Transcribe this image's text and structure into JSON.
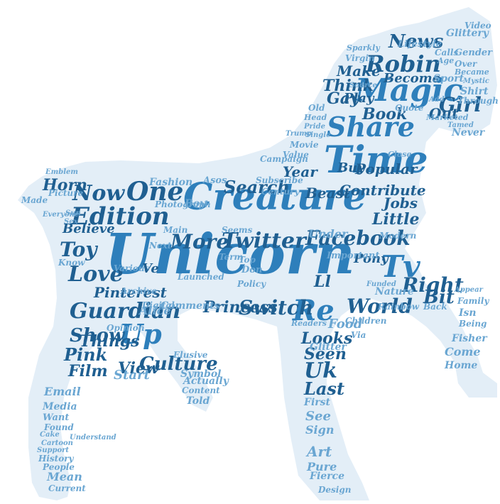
{
  "palette": {
    "bg_shape": "#e3eef7",
    "primary": "#2e7fbb",
    "dark": "#1f5f91",
    "light": "#6aa6d2",
    "pale": "#a9c9e4"
  },
  "words": [
    {
      "t": "Unicorn",
      "c": "primary"
    },
    {
      "t": "Creature",
      "c": "primary"
    },
    {
      "t": "Time",
      "c": "primary"
    },
    {
      "t": "Magic",
      "c": "primary"
    },
    {
      "t": "Share",
      "c": "primary"
    },
    {
      "t": "Robin",
      "c": "dark"
    },
    {
      "t": "News",
      "c": "dark"
    },
    {
      "t": "Edition",
      "c": "dark"
    },
    {
      "t": "Twitter",
      "c": "dark"
    },
    {
      "t": "Facebook",
      "c": "dark"
    },
    {
      "t": "Guardian",
      "c": "dark"
    },
    {
      "t": "Up",
      "c": "primary"
    },
    {
      "t": "Re",
      "c": "primary"
    },
    {
      "t": "One",
      "c": "dark"
    },
    {
      "t": "Now",
      "c": "dark"
    },
    {
      "t": "Love",
      "c": "dark"
    },
    {
      "t": "Toy",
      "c": "dark"
    },
    {
      "t": "Show",
      "c": "dark"
    },
    {
      "t": "Pink",
      "c": "dark"
    },
    {
      "t": "Film",
      "c": "dark"
    },
    {
      "t": "Culture",
      "c": "dark"
    },
    {
      "t": "Search",
      "c": "dark"
    },
    {
      "t": "More",
      "c": "dark"
    },
    {
      "t": "Switch",
      "c": "dark"
    },
    {
      "t": "World",
      "c": "dark"
    },
    {
      "t": "Right",
      "c": "dark"
    },
    {
      "t": "Girl",
      "c": "dark"
    },
    {
      "t": "Book",
      "c": "dark"
    },
    {
      "t": "Popular",
      "c": "dark"
    },
    {
      "t": "Tv",
      "c": "primary"
    },
    {
      "t": "Uk",
      "c": "dark"
    },
    {
      "t": "Seen",
      "c": "dark"
    },
    {
      "t": "Last",
      "c": "dark"
    },
    {
      "t": "Looks",
      "c": "dark"
    },
    {
      "t": "Princess",
      "c": "dark"
    },
    {
      "t": "View",
      "c": "dark"
    },
    {
      "t": "Things",
      "c": "dark"
    },
    {
      "t": "Gay",
      "c": "dark"
    },
    {
      "t": "Think",
      "c": "dark"
    },
    {
      "t": "Play",
      "c": "dark"
    },
    {
      "t": "Make",
      "c": "dark"
    },
    {
      "t": "Become",
      "c": "dark"
    },
    {
      "t": "Little",
      "c": "dark"
    },
    {
      "t": "Jobs",
      "c": "dark"
    },
    {
      "t": "Contribute",
      "c": "dark"
    },
    {
      "t": "Beast",
      "c": "dark"
    },
    {
      "t": "Year",
      "c": "dark"
    },
    {
      "t": "Buy",
      "c": "dark"
    },
    {
      "t": "Horn",
      "c": "dark"
    },
    {
      "t": "Pinterest",
      "c": "dark"
    },
    {
      "t": "Believe",
      "c": "dark"
    },
    {
      "t": "Pony",
      "c": "dark"
    },
    {
      "t": "Out",
      "c": "dark"
    },
    {
      "t": "Comments",
      "c": "light"
    },
    {
      "t": "Alice",
      "c": "light"
    },
    {
      "t": "Start",
      "c": "light"
    },
    {
      "t": "Bit",
      "c": "dark"
    },
    {
      "t": "Food",
      "c": "light"
    },
    {
      "t": "See",
      "c": "light"
    },
    {
      "t": "First",
      "c": "light"
    },
    {
      "t": "Sign",
      "c": "light"
    },
    {
      "t": "Art",
      "c": "light"
    },
    {
      "t": "Pure",
      "c": "light"
    },
    {
      "t": "Fierce",
      "c": "light"
    },
    {
      "t": "Design",
      "c": "light"
    },
    {
      "t": "Digital",
      "c": "light"
    },
    {
      "t": "Email",
      "c": "light"
    },
    {
      "t": "Media",
      "c": "light"
    },
    {
      "t": "Want",
      "c": "light"
    },
    {
      "t": "Found",
      "c": "light"
    },
    {
      "t": "Mean",
      "c": "light"
    },
    {
      "t": "People",
      "c": "light"
    },
    {
      "t": "Current",
      "c": "light"
    },
    {
      "t": "History",
      "c": "light"
    },
    {
      "t": "Support",
      "c": "light"
    },
    {
      "t": "Cartoon",
      "c": "light"
    },
    {
      "t": "Cake",
      "c": "light"
    },
    {
      "t": "Told",
      "c": "light"
    },
    {
      "t": "Symbol",
      "c": "light"
    },
    {
      "t": "Content",
      "c": "light"
    },
    {
      "t": "Actually",
      "c": "light"
    },
    {
      "t": "Elusive",
      "c": "light"
    },
    {
      "t": "Glitter",
      "c": "light"
    },
    {
      "t": "Children",
      "c": "light"
    },
    {
      "t": "Rainbow",
      "c": "light"
    },
    {
      "t": "Nature",
      "c": "light"
    },
    {
      "t": "Modern",
      "c": "light"
    },
    {
      "t": "Important",
      "c": "light"
    },
    {
      "t": "Under",
      "c": "light"
    },
    {
      "t": "Launched",
      "c": "light"
    },
    {
      "t": "Seems",
      "c": "light"
    },
    {
      "t": "Main",
      "c": "light"
    },
    {
      "t": "Policy",
      "c": "light"
    },
    {
      "t": "Century",
      "c": "light"
    },
    {
      "t": "Subscribe",
      "c": "light"
    },
    {
      "t": "Campaign",
      "c": "light"
    },
    {
      "t": "Movie",
      "c": "light"
    },
    {
      "t": "Value",
      "c": "light"
    },
    {
      "t": "Fashion",
      "c": "light"
    },
    {
      "t": "Photograph",
      "c": "light"
    },
    {
      "t": "Asos",
      "c": "light"
    },
    {
      "t": "Boy",
      "c": "light"
    },
    {
      "t": "Picture",
      "c": "light"
    },
    {
      "t": "Made",
      "c": "light"
    },
    {
      "t": "Emblem",
      "c": "light"
    },
    {
      "t": "Sun",
      "c": "light"
    },
    {
      "t": "Sex",
      "c": "light"
    },
    {
      "t": "Know",
      "c": "light"
    },
    {
      "t": "Various",
      "c": "light"
    },
    {
      "t": "Archive",
      "c": "light"
    },
    {
      "t": "Opinion",
      "c": "light"
    },
    {
      "t": "Next",
      "c": "light"
    },
    {
      "t": "Ll",
      "c": "dark"
    },
    {
      "t": "Ve",
      "c": "dark"
    },
    {
      "t": "Don",
      "c": "light"
    },
    {
      "t": "Top",
      "c": "light"
    },
    {
      "t": "Term",
      "c": "light"
    },
    {
      "t": "Understand",
      "c": "light"
    },
    {
      "t": "Home",
      "c": "light"
    },
    {
      "t": "Come",
      "c": "light"
    },
    {
      "t": "Fisher",
      "c": "light"
    },
    {
      "t": "Being",
      "c": "light"
    },
    {
      "t": "Isn",
      "c": "light"
    },
    {
      "t": "Family",
      "c": "light"
    },
    {
      "t": "Appear",
      "c": "light"
    },
    {
      "t": "Back",
      "c": "light"
    },
    {
      "t": "Via",
      "c": "light"
    },
    {
      "t": "Sport",
      "c": "light"
    },
    {
      "t": "Never",
      "c": "light"
    },
    {
      "t": "Shirt",
      "c": "light"
    },
    {
      "t": "Through",
      "c": "light"
    },
    {
      "t": "Mystic",
      "c": "light"
    },
    {
      "t": "Became",
      "c": "light"
    },
    {
      "t": "Over",
      "c": "light"
    },
    {
      "t": "Gender",
      "c": "light"
    },
    {
      "t": "Video",
      "c": "light"
    },
    {
      "t": "Glittery",
      "c": "light"
    },
    {
      "t": "Lifestyle",
      "c": "light"
    },
    {
      "t": "Calls",
      "c": "light"
    },
    {
      "t": "Age",
      "c": "light"
    },
    {
      "t": "Virgin",
      "c": "light"
    },
    {
      "t": "Sparkly",
      "c": "light"
    },
    {
      "t": "Old",
      "c": "light"
    },
    {
      "t": "Head",
      "c": "light"
    },
    {
      "t": "Pride",
      "c": "light"
    },
    {
      "t": "Single",
      "c": "light"
    },
    {
      "t": "Trump",
      "c": "light"
    },
    {
      "t": "Source",
      "c": "light"
    },
    {
      "t": "Quote",
      "c": "light"
    },
    {
      "t": "Tamed",
      "c": "light"
    },
    {
      "t": "Marketed",
      "c": "light"
    },
    {
      "t": "Funded",
      "c": "light"
    },
    {
      "t": "Readers",
      "c": "light"
    },
    {
      "t": "Close",
      "c": "light"
    },
    {
      "t": "Add",
      "c": "light"
    },
    {
      "t": "Everyone",
      "c": "light"
    }
  ]
}
